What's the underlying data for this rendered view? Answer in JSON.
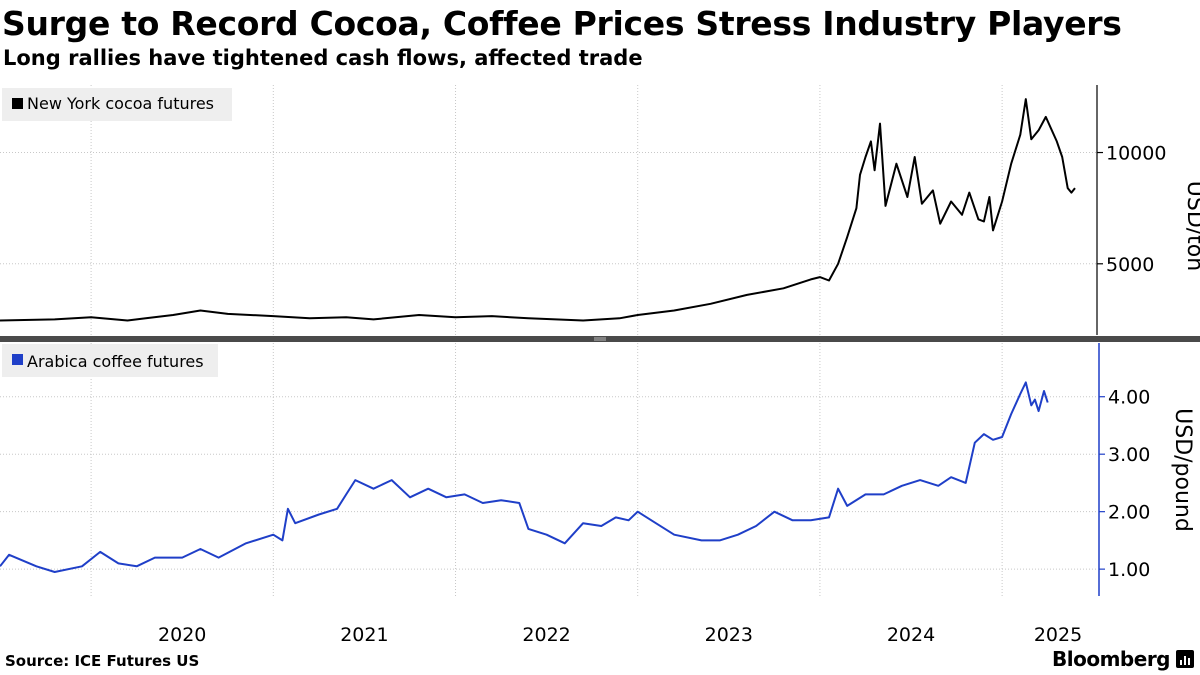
{
  "header": {
    "title": "Surge to Record Cocoa, Coffee Prices Stress Industry Players",
    "subtitle": "Long rallies have tightened cash flows, affected trade"
  },
  "footer": {
    "source": "Source: ICE Futures US",
    "brand": "Bloomberg"
  },
  "chart_data": [
    {
      "type": "line",
      "legend": "New York cocoa futures",
      "ylabel": "USD/ton",
      "color": "#000000",
      "ylim": [
        1800,
        12900
      ],
      "yticks": [
        5000,
        10000
      ],
      "ytick_labels": [
        "5000",
        "10000"
      ],
      "points": [
        [
          2019.5,
          2450
        ],
        [
          2019.8,
          2500
        ],
        [
          2020.0,
          2600
        ],
        [
          2020.2,
          2450
        ],
        [
          2020.3,
          2550
        ],
        [
          2020.45,
          2700
        ],
        [
          2020.6,
          2900
        ],
        [
          2020.75,
          2750
        ],
        [
          2021.0,
          2650
        ],
        [
          2021.2,
          2550
        ],
        [
          2021.4,
          2600
        ],
        [
          2021.55,
          2500
        ],
        [
          2021.8,
          2700
        ],
        [
          2022.0,
          2600
        ],
        [
          2022.2,
          2650
        ],
        [
          2022.4,
          2550
        ],
        [
          2022.7,
          2450
        ],
        [
          2022.9,
          2550
        ],
        [
          2023.0,
          2700
        ],
        [
          2023.2,
          2900
        ],
        [
          2023.4,
          3200
        ],
        [
          2023.6,
          3600
        ],
        [
          2023.8,
          3900
        ],
        [
          2023.95,
          4300
        ],
        [
          2024.0,
          4400
        ],
        [
          2024.05,
          4250
        ],
        [
          2024.1,
          5000
        ],
        [
          2024.15,
          6200
        ],
        [
          2024.2,
          7500
        ],
        [
          2024.22,
          9000
        ],
        [
          2024.25,
          9800
        ],
        [
          2024.28,
          10500
        ],
        [
          2024.3,
          9200
        ],
        [
          2024.33,
          11300
        ],
        [
          2024.36,
          7600
        ],
        [
          2024.42,
          9500
        ],
        [
          2024.48,
          8000
        ],
        [
          2024.52,
          9800
        ],
        [
          2024.56,
          7700
        ],
        [
          2024.62,
          8300
        ],
        [
          2024.66,
          6800
        ],
        [
          2024.72,
          7800
        ],
        [
          2024.78,
          7200
        ],
        [
          2024.82,
          8200
        ],
        [
          2024.87,
          7000
        ],
        [
          2024.9,
          6900
        ],
        [
          2024.93,
          8000
        ],
        [
          2024.95,
          6500
        ],
        [
          2025.0,
          7800
        ],
        [
          2025.05,
          9500
        ],
        [
          2025.1,
          10800
        ],
        [
          2025.13,
          12400
        ],
        [
          2025.16,
          10600
        ],
        [
          2025.2,
          11000
        ],
        [
          2025.24,
          11600
        ],
        [
          2025.3,
          10500
        ],
        [
          2025.33,
          9800
        ],
        [
          2025.36,
          8400
        ],
        [
          2025.38,
          8200
        ],
        [
          2025.4,
          8400
        ]
      ]
    },
    {
      "type": "line",
      "legend": "Arabica coffee futures",
      "ylabel": "USD/pound",
      "color": "#1f3fc8",
      "ylim": [
        0.55,
        4.9
      ],
      "yticks": [
        1.0,
        2.0,
        3.0,
        4.0
      ],
      "ytick_labels": [
        "1.00",
        "2.00",
        "3.00",
        "4.00"
      ],
      "points": [
        [
          2019.5,
          1.05
        ],
        [
          2019.55,
          1.25
        ],
        [
          2019.7,
          1.05
        ],
        [
          2019.8,
          0.95
        ],
        [
          2019.95,
          1.05
        ],
        [
          2020.05,
          1.3
        ],
        [
          2020.15,
          1.1
        ],
        [
          2020.25,
          1.05
        ],
        [
          2020.35,
          1.2
        ],
        [
          2020.5,
          1.2
        ],
        [
          2020.6,
          1.35
        ],
        [
          2020.7,
          1.2
        ],
        [
          2020.85,
          1.45
        ],
        [
          2021.0,
          1.6
        ],
        [
          2021.05,
          1.5
        ],
        [
          2021.08,
          2.05
        ],
        [
          2021.12,
          1.8
        ],
        [
          2021.25,
          1.95
        ],
        [
          2021.35,
          2.05
        ],
        [
          2021.4,
          2.3
        ],
        [
          2021.45,
          2.55
        ],
        [
          2021.55,
          2.4
        ],
        [
          2021.65,
          2.55
        ],
        [
          2021.75,
          2.25
        ],
        [
          2021.85,
          2.4
        ],
        [
          2021.95,
          2.25
        ],
        [
          2022.05,
          2.3
        ],
        [
          2022.15,
          2.15
        ],
        [
          2022.25,
          2.2
        ],
        [
          2022.35,
          2.15
        ],
        [
          2022.4,
          1.7
        ],
        [
          2022.5,
          1.6
        ],
        [
          2022.6,
          1.45
        ],
        [
          2022.7,
          1.8
        ],
        [
          2022.8,
          1.75
        ],
        [
          2022.88,
          1.9
        ],
        [
          2022.95,
          1.85
        ],
        [
          2023.0,
          2.0
        ],
        [
          2023.1,
          1.8
        ],
        [
          2023.2,
          1.6
        ],
        [
          2023.35,
          1.5
        ],
        [
          2023.45,
          1.5
        ],
        [
          2023.55,
          1.6
        ],
        [
          2023.65,
          1.75
        ],
        [
          2023.75,
          2.0
        ],
        [
          2023.85,
          1.85
        ],
        [
          2023.95,
          1.85
        ],
        [
          2024.05,
          1.9
        ],
        [
          2024.1,
          2.4
        ],
        [
          2024.15,
          2.1
        ],
        [
          2024.25,
          2.3
        ],
        [
          2024.35,
          2.3
        ],
        [
          2024.45,
          2.45
        ],
        [
          2024.55,
          2.55
        ],
        [
          2024.65,
          2.45
        ],
        [
          2024.72,
          2.6
        ],
        [
          2024.8,
          2.5
        ],
        [
          2024.85,
          3.2
        ],
        [
          2024.9,
          3.35
        ],
        [
          2024.95,
          3.25
        ],
        [
          2025.0,
          3.3
        ],
        [
          2025.05,
          3.7
        ],
        [
          2025.1,
          4.05
        ],
        [
          2025.13,
          4.25
        ],
        [
          2025.16,
          3.85
        ],
        [
          2025.18,
          3.95
        ],
        [
          2025.2,
          3.75
        ],
        [
          2025.23,
          4.1
        ],
        [
          2025.25,
          3.9
        ]
      ]
    }
  ],
  "x_axis": {
    "xlim": [
      2019.5,
      2025.4
    ],
    "tick_years": [
      2020,
      2021,
      2022,
      2023,
      2024,
      2025
    ],
    "tick_labels": [
      "2020",
      "2021",
      "2022",
      "2023",
      "2024",
      "2025"
    ]
  }
}
